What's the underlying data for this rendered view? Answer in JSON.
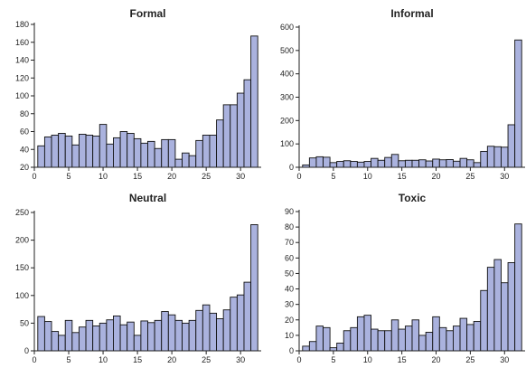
{
  "chart_data": [
    {
      "type": "bar",
      "title": "Formal",
      "x": [
        1,
        2,
        3,
        4,
        5,
        6,
        7,
        8,
        9,
        10,
        11,
        12,
        13,
        14,
        15,
        16,
        17,
        18,
        19,
        20,
        21,
        22,
        23,
        24,
        25,
        26,
        27,
        28,
        29,
        30,
        31,
        32
      ],
      "values": [
        44,
        54,
        56,
        58,
        55,
        45,
        57,
        56,
        55,
        68,
        46,
        53,
        60,
        58,
        52,
        47,
        49,
        41,
        51,
        51,
        29,
        36,
        33,
        50,
        56,
        56,
        73,
        90,
        90,
        103,
        118,
        167
      ],
      "xlim": [
        0,
        33
      ],
      "ylim": [
        20,
        180
      ],
      "xticks": [
        0,
        5,
        10,
        15,
        20,
        25,
        30
      ],
      "yticks": [
        20,
        40,
        60,
        80,
        100,
        120,
        140,
        160,
        180
      ],
      "color": "#aab2de"
    },
    {
      "type": "bar",
      "title": "Informal",
      "x": [
        1,
        2,
        3,
        4,
        5,
        6,
        7,
        8,
        9,
        10,
        11,
        12,
        13,
        14,
        15,
        16,
        17,
        18,
        19,
        20,
        21,
        22,
        23,
        24,
        25,
        26,
        27,
        28,
        29,
        30,
        31,
        32
      ],
      "values": [
        10,
        40,
        45,
        43,
        20,
        25,
        28,
        25,
        22,
        25,
        38,
        30,
        42,
        55,
        28,
        30,
        30,
        32,
        27,
        35,
        32,
        33,
        26,
        38,
        32,
        20,
        68,
        90,
        88,
        86,
        182,
        545
      ],
      "xlim": [
        0,
        33
      ],
      "ylim": [
        0,
        600
      ],
      "xticks": [
        0,
        5,
        10,
        15,
        20,
        25,
        30
      ],
      "yticks": [
        0,
        100,
        200,
        300,
        400,
        500,
        600
      ],
      "color": "#aab2de"
    },
    {
      "type": "bar",
      "title": "Neutral",
      "x": [
        1,
        2,
        3,
        4,
        5,
        6,
        7,
        8,
        9,
        10,
        11,
        12,
        13,
        14,
        15,
        16,
        17,
        18,
        19,
        20,
        21,
        22,
        23,
        24,
        25,
        26,
        27,
        28,
        29,
        30,
        31,
        32
      ],
      "values": [
        62,
        53,
        35,
        28,
        55,
        33,
        43,
        55,
        45,
        50,
        56,
        63,
        47,
        52,
        28,
        54,
        51,
        55,
        71,
        65,
        55,
        50,
        55,
        73,
        83,
        68,
        58,
        74,
        97,
        101,
        124,
        228
      ],
      "xlim": [
        0,
        33
      ],
      "ylim": [
        0,
        250
      ],
      "xticks": [
        0,
        5,
        10,
        15,
        20,
        25,
        30
      ],
      "yticks": [
        0,
        50,
        100,
        150,
        200,
        250
      ],
      "color": "#aab2de"
    },
    {
      "type": "bar",
      "title": "Toxic",
      "x": [
        1,
        2,
        3,
        4,
        5,
        6,
        7,
        8,
        9,
        10,
        11,
        12,
        13,
        14,
        15,
        16,
        17,
        18,
        19,
        20,
        21,
        22,
        23,
        24,
        25,
        26,
        27,
        28,
        29,
        30,
        31,
        32
      ],
      "values": [
        3,
        6,
        16,
        15,
        2,
        5,
        13,
        15,
        22,
        23,
        14,
        13,
        13,
        20,
        14,
        16,
        20,
        10,
        12,
        22,
        15,
        13,
        16,
        21,
        17,
        19,
        39,
        54,
        59,
        44,
        57,
        82
      ],
      "xlim": [
        0,
        33
      ],
      "ylim": [
        0,
        90
      ],
      "xticks": [
        0,
        5,
        10,
        15,
        20,
        25,
        30
      ],
      "yticks": [
        0,
        10,
        20,
        30,
        40,
        50,
        60,
        70,
        80,
        90
      ],
      "color": "#aab2de"
    }
  ]
}
